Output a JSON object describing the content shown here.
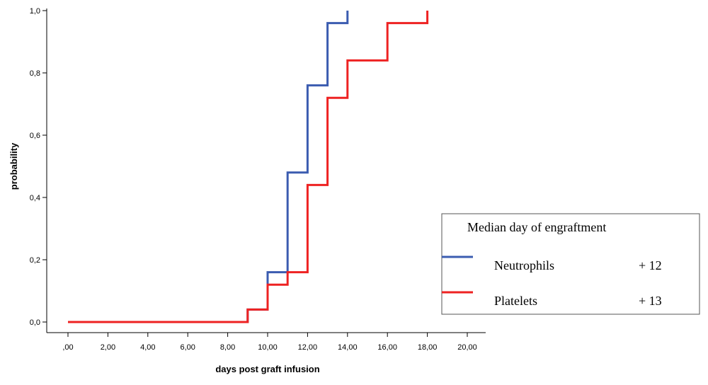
{
  "chart_data": {
    "type": "line",
    "xlabel": "days post graft infusion",
    "ylabel": "probability",
    "xlim": [
      0,
      20
    ],
    "ylim": [
      0,
      1
    ],
    "x_ticks": [
      ",00",
      "2,00",
      "4,00",
      "6,00",
      "8,00",
      "10,00",
      "12,00",
      "14,00",
      "16,00",
      "18,00",
      "20,00"
    ],
    "y_ticks": [
      "0,0",
      "0,2",
      "0,4",
      "0,6",
      "0,8",
      "1,0"
    ],
    "grid": false,
    "series": [
      {
        "name": "Neutrophils",
        "color": "#3b5cb0",
        "step": true,
        "points": [
          [
            0,
            0
          ],
          [
            9,
            0.04
          ],
          [
            10,
            0.16
          ],
          [
            11,
            0.48
          ],
          [
            12,
            0.76
          ],
          [
            13,
            0.96
          ],
          [
            14,
            1.0
          ]
        ]
      },
      {
        "name": "Platelets",
        "color": "#ee2222",
        "step": true,
        "points": [
          [
            0,
            0
          ],
          [
            9,
            0.04
          ],
          [
            10,
            0.12
          ],
          [
            11,
            0.16
          ],
          [
            12,
            0.44
          ],
          [
            13,
            0.72
          ],
          [
            14,
            0.84
          ],
          [
            16,
            0.96
          ],
          [
            18,
            1.0
          ]
        ]
      }
    ],
    "legend": {
      "position": "bottom-right",
      "title": "Median day of  engraftment",
      "entries": [
        {
          "label": "Neutrophils",
          "value": "+ 12",
          "color": "#3b5cb0"
        },
        {
          "label": "Platelets",
          "value": "+ 13",
          "color": "#ee2222"
        }
      ]
    }
  }
}
